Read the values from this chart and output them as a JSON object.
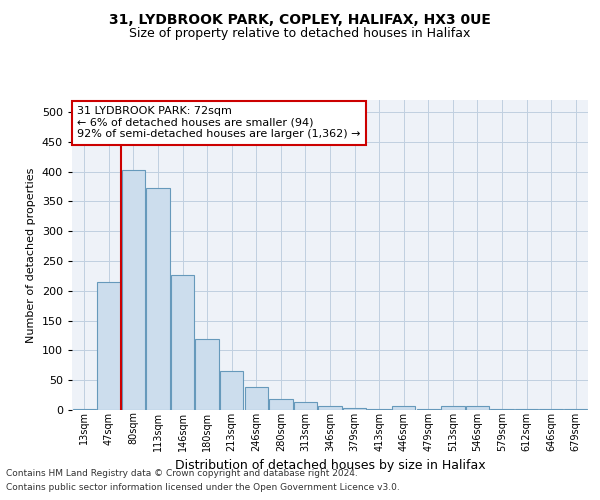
{
  "title1": "31, LYDBROOK PARK, COPLEY, HALIFAX, HX3 0UE",
  "title2": "Size of property relative to detached houses in Halifax",
  "xlabel": "Distribution of detached houses by size in Halifax",
  "ylabel": "Number of detached properties",
  "categories": [
    "13sqm",
    "47sqm",
    "80sqm",
    "113sqm",
    "146sqm",
    "180sqm",
    "213sqm",
    "246sqm",
    "280sqm",
    "313sqm",
    "346sqm",
    "379sqm",
    "413sqm",
    "446sqm",
    "479sqm",
    "513sqm",
    "546sqm",
    "579sqm",
    "612sqm",
    "646sqm",
    "679sqm"
  ],
  "values": [
    2,
    214,
    403,
    373,
    226,
    119,
    65,
    38,
    19,
    14,
    7,
    3,
    1,
    7,
    1,
    6,
    7,
    2,
    1,
    1,
    2
  ],
  "bar_color": "#ccdded",
  "bar_edge_color": "#6699bb",
  "vline_color": "#cc0000",
  "vline_x_index": 2,
  "annotation_line1": "31 LYDBROOK PARK: 72sqm",
  "annotation_line2": "← 6% of detached houses are smaller (94)",
  "annotation_line3": "92% of semi-detached houses are larger (1,362) →",
  "annotation_box_color": "#ffffff",
  "annotation_box_edge": "#cc0000",
  "ylim_max": 520,
  "yticks": [
    0,
    50,
    100,
    150,
    200,
    250,
    300,
    350,
    400,
    450,
    500
  ],
  "footer1": "Contains HM Land Registry data © Crown copyright and database right 2024.",
  "footer2": "Contains public sector information licensed under the Open Government Licence v3.0.",
  "bg_color": "#ffffff",
  "plot_bg_color": "#eef2f8",
  "grid_color": "#c0cfe0"
}
